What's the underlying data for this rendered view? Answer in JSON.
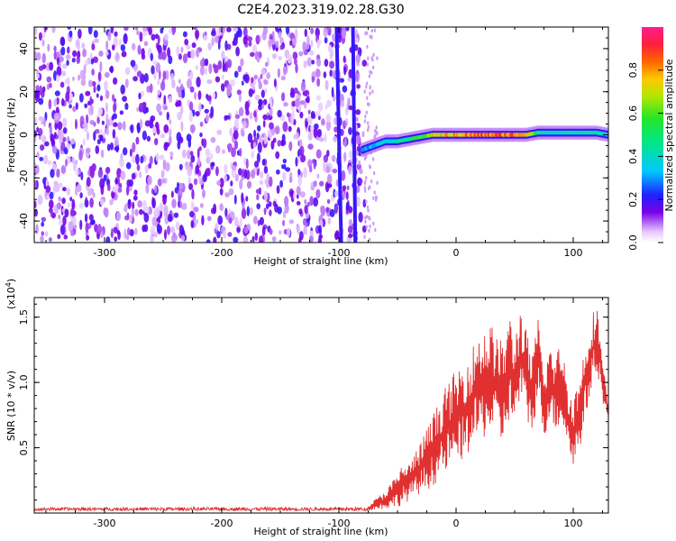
{
  "title": "C2E4.2023.319.02.28.G30",
  "chart_data": [
    {
      "type": "heatmap",
      "xlabel": "Height of straight line (km)",
      "ylabel": "Frequency (Hz)",
      "xlim": [
        -360,
        130
      ],
      "ylim": [
        -50,
        50
      ],
      "xticks": [
        -300,
        -200,
        -100,
        0,
        100
      ],
      "yticks": [
        -40,
        -20,
        0,
        20,
        40
      ],
      "xtick_labels": [
        "-300",
        "-200",
        "-100",
        "0",
        "100"
      ],
      "ytick_labels": [
        "-40",
        "-20",
        "0",
        "20",
        "40"
      ],
      "colorbar": {
        "label": "Normalized spectral amplitude",
        "range": [
          0,
          1
        ],
        "ticks": [
          0.0,
          0.2,
          0.4,
          0.6,
          0.8
        ],
        "tick_labels": [
          "0.0",
          "0.2",
          "0.4",
          "0.6",
          "0.8"
        ]
      },
      "features": {
        "noise_region_x": [
          -360,
          -78
        ],
        "noise_amplitude": 0.15,
        "streak_lines": [
          {
            "x_at_top": -102,
            "x_at_bottom": -98
          },
          {
            "x_at_top": -88,
            "x_at_bottom": -86
          }
        ],
        "signal_track": {
          "x": [
            -80,
            -70,
            -60,
            -50,
            -40,
            -30,
            -20,
            -10,
            0,
            20,
            40,
            60,
            70,
            80,
            100,
            120,
            130
          ],
          "freq": [
            -7,
            -5,
            -3,
            -3,
            -2,
            -1,
            0,
            0,
            0,
            0,
            0,
            0,
            1,
            1,
            1,
            1,
            0
          ],
          "amplitude": [
            0.3,
            0.35,
            0.4,
            0.45,
            0.5,
            0.6,
            0.75,
            0.8,
            0.85,
            0.9,
            0.9,
            0.9,
            0.5,
            0.4,
            0.45,
            0.45,
            0.4
          ]
        }
      }
    },
    {
      "type": "line",
      "xlabel": "Height of straight line (km)",
      "ylabel": "SNR (10 * v/v)",
      "y_multiplier": "(x10^4)",
      "xlim": [
        -360,
        130
      ],
      "ylim": [
        0,
        1.65
      ],
      "xticks": [
        -300,
        -200,
        -100,
        0,
        100
      ],
      "yticks": [
        0.5,
        1.0,
        1.5
      ],
      "xtick_labels": [
        "-300",
        "-200",
        "-100",
        "0",
        "100"
      ],
      "ytick_labels": [
        "0.5",
        "1.0",
        "1.5"
      ],
      "line_color": "#e03030",
      "series": [
        {
          "x": [
            -360,
            -200,
            -100,
            -75,
            -60,
            -50,
            -45,
            -40,
            -30,
            -20,
            -10,
            0,
            10,
            20,
            30,
            40,
            45,
            50,
            55,
            60,
            65,
            70,
            75,
            80,
            85,
            90,
            95,
            100,
            105,
            110,
            115,
            120,
            125,
            130
          ],
          "y": [
            0.03,
            0.03,
            0.03,
            0.06,
            0.18,
            0.3,
            0.4,
            0.38,
            0.55,
            0.75,
            0.95,
            1.1,
            1.2,
            1.4,
            1.45,
            1.3,
            1.55,
            1.35,
            1.6,
            1.4,
            1.2,
            1.5,
            1.1,
            1.3,
            1.2,
            1.35,
            1.0,
            0.9,
            1.05,
            1.3,
            1.5,
            1.62,
            1.2,
            0.8
          ],
          "envelope_min": [
            0.02,
            0.02,
            0.02,
            0.02,
            0.03,
            0.05,
            0.06,
            0.1,
            0.15,
            0.2,
            0.3,
            0.35,
            0.45,
            0.55,
            0.6,
            0.5,
            0.7,
            0.65,
            0.85,
            0.7,
            0.6,
            0.9,
            0.55,
            0.75,
            0.6,
            0.7,
            0.5,
            0.35,
            0.45,
            0.7,
            0.9,
            1.1,
            0.85,
            0.7
          ]
        }
      ]
    }
  ]
}
